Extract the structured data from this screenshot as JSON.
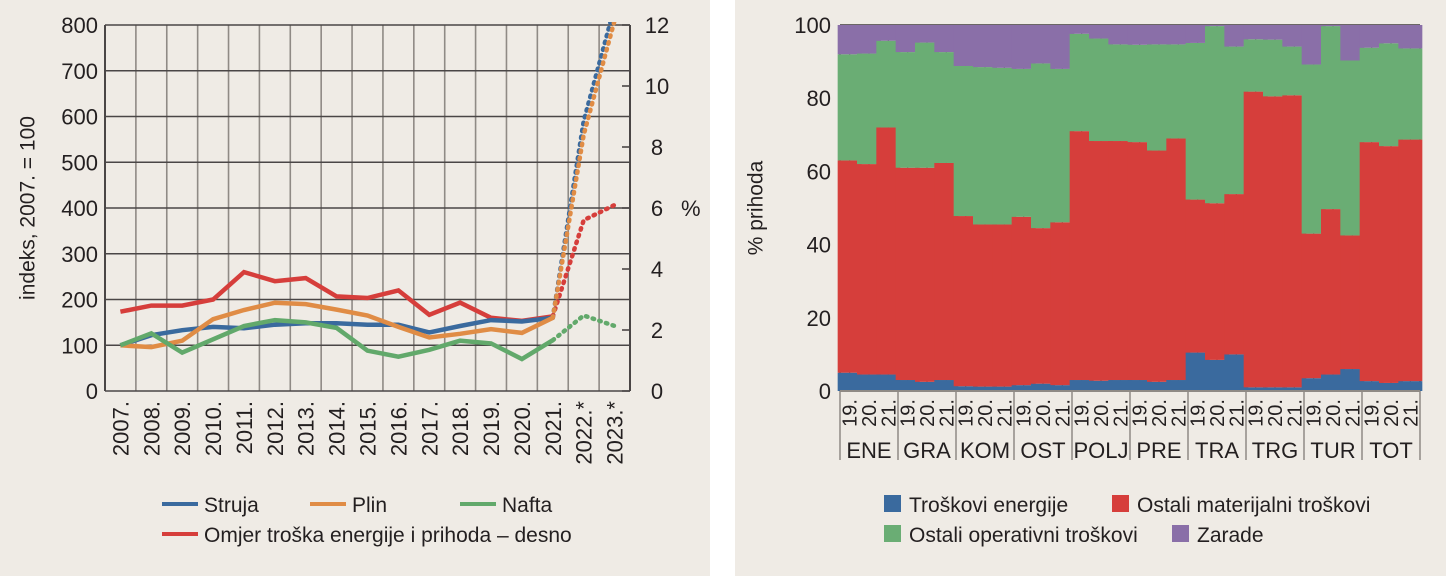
{
  "chart_data": [
    {
      "type": "line",
      "title": "",
      "ylabel": "indeks, 2007. = 100",
      "y2label": "%",
      "ylim": [
        0,
        800
      ],
      "y2lim": [
        0,
        12
      ],
      "yticks": [
        "0",
        "100",
        "200",
        "300",
        "400",
        "500",
        "600",
        "700",
        "800"
      ],
      "y2ticks": [
        "0",
        "2",
        "4",
        "6",
        "8",
        "10",
        "12"
      ],
      "categories": [
        "2007.",
        "2008.",
        "2009.",
        "2010.",
        "2011.",
        "2012.",
        "2013.",
        "2014.",
        "2015.",
        "2016.",
        "2017.",
        "2018.",
        "2019.",
        "2020.",
        "2021.",
        "2022.*",
        "2023.*"
      ],
      "projection_from_index": 14,
      "series": [
        {
          "name": "Struja",
          "axis": "left",
          "color": "#3a6a9e",
          "values": [
            100,
            122,
            133,
            140,
            137,
            145,
            148,
            148,
            145,
            145,
            128,
            142,
            155,
            152,
            160,
            590,
            840
          ]
        },
        {
          "name": "Plin",
          "axis": "left",
          "color": "#e08c45",
          "values": [
            100,
            96,
            110,
            157,
            177,
            193,
            190,
            178,
            165,
            140,
            117,
            125,
            135,
            127,
            160,
            560,
            810
          ]
        },
        {
          "name": "Nafta",
          "axis": "left",
          "color": "#62a96b",
          "values": [
            100,
            126,
            84,
            113,
            142,
            155,
            150,
            138,
            88,
            75,
            90,
            110,
            104,
            70,
            111,
            165,
            142
          ]
        },
        {
          "name": "Omjer troška energije i prihoda – desno",
          "axis": "right",
          "color": "#d63e3b",
          "values": [
            2.6,
            2.8,
            2.8,
            3.0,
            3.9,
            3.6,
            3.7,
            3.1,
            3.05,
            3.3,
            2.5,
            2.9,
            2.4,
            2.3,
            2.45,
            5.6,
            6.1
          ]
        }
      ],
      "legend": {
        "position": "bottom",
        "items": [
          "Struja",
          "Plin",
          "Nafta",
          "Omjer troška energije i prihoda – desno"
        ]
      },
      "grid": true
    },
    {
      "type": "bar",
      "stacked": true,
      "ylabel": "% prihoda",
      "ylim": [
        0,
        100
      ],
      "yticks": [
        "0",
        "20",
        "40",
        "60",
        "80",
        "100"
      ],
      "groups": [
        "ENE",
        "GRA",
        "KOM",
        "OST",
        "POLJ",
        "PRE",
        "TRA",
        "TRG",
        "TUR",
        "TOT"
      ],
      "years": [
        "19.",
        "20.",
        "21."
      ],
      "series": [
        {
          "name": "Troškovi energije",
          "color": "#3a6a9e",
          "values": [
            5,
            4.5,
            4.5,
            3,
            2.5,
            3,
            1.3,
            1.2,
            1.2,
            1.6,
            2,
            1.6,
            3,
            2.8,
            3,
            3,
            2.5,
            3,
            10.5,
            8.5,
            10,
            1,
            1,
            1,
            3.5,
            4.5,
            6,
            2.7,
            2.2,
            2.7
          ]
        },
        {
          "name": "Ostali materijalni troškovi",
          "color": "#d63e3b",
          "values": [
            58,
            57.5,
            67.5,
            58,
            58.5,
            59.3,
            46.5,
            44.3,
            44.3,
            46,
            42.5,
            44.5,
            68,
            65.5,
            65.3,
            65,
            63.2,
            66,
            41.8,
            42.8,
            43.8,
            80.8,
            79.5,
            79.8,
            39.5,
            45.2,
            36.5,
            65.3,
            64.7,
            66
          ]
        },
        {
          "name": "Ostali operativni troškovi",
          "color": "#6aad74",
          "values": [
            29,
            30.2,
            23.7,
            31.6,
            34.2,
            30.3,
            41,
            43,
            42.8,
            40.4,
            45,
            41.9,
            26.6,
            28,
            26.4,
            26.6,
            29,
            25.7,
            42.8,
            48.4,
            40.3,
            14.3,
            15.5,
            13.3,
            46.2,
            50,
            47.8,
            25.8,
            28.1,
            24.9
          ]
        },
        {
          "name": "Zarade",
          "color": "#8a6fa8",
          "values": [
            8,
            7.8,
            4.3,
            7.4,
            4.8,
            7.4,
            11.2,
            11.5,
            11.7,
            12,
            10.5,
            12,
            2.4,
            3.7,
            5.3,
            5.4,
            5.3,
            5.3,
            4.9,
            0.3,
            5.9,
            3.9,
            4,
            5.9,
            10.8,
            0.3,
            9.7,
            6.2,
            5,
            6.4
          ]
        }
      ],
      "legend": {
        "position": "bottom",
        "items": [
          "Troškovi energije",
          "Ostali materijalni troškovi",
          "Ostali operativni troškovi",
          "Zarade"
        ]
      },
      "grid": true
    }
  ]
}
